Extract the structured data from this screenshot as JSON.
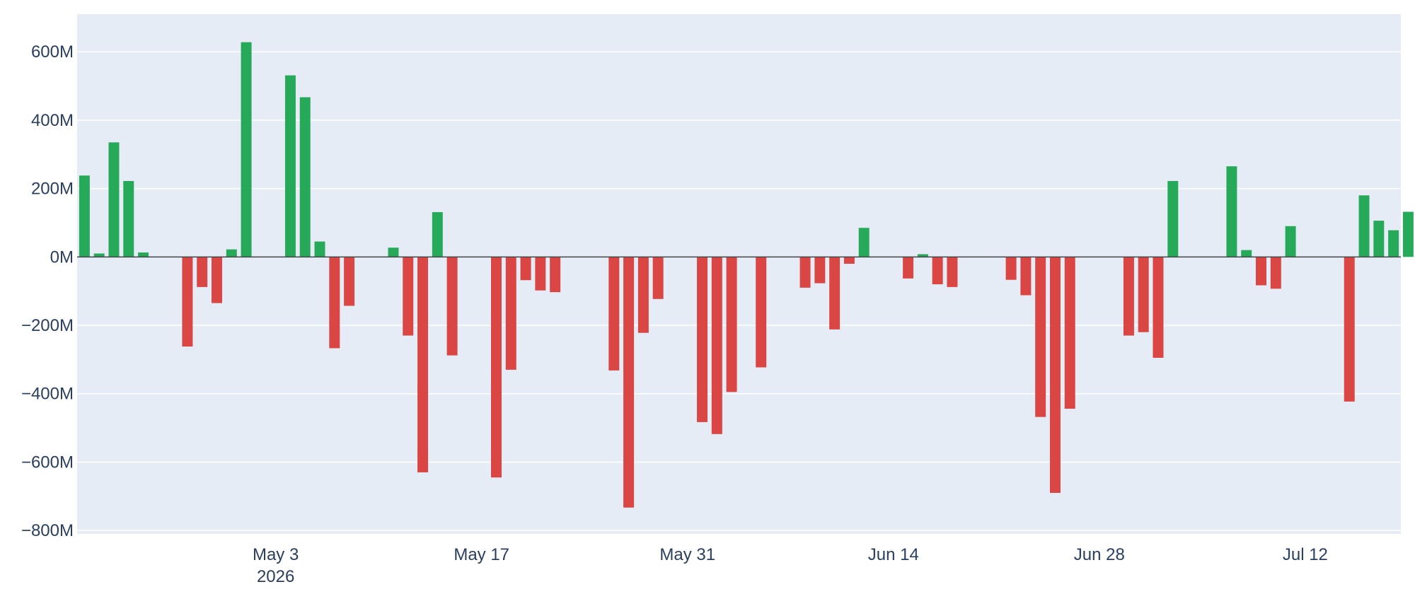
{
  "chart_data": {
    "type": "bar",
    "x_start": "2026-04-20",
    "xlim": [
      "2026-04-19T12:00",
      "2026-07-18T12:00"
    ],
    "ylim": [
      -810000000,
      710000000
    ],
    "grid": true,
    "legend": "none",
    "colors": {
      "positive": "#27a95a",
      "negative": "#d94643",
      "plot_bg": "#e5ecf6",
      "grid": "#ffffff",
      "zero_line": "#444444",
      "text": "#2a3f5f"
    },
    "yticks": [
      {
        "value": 600000000,
        "label": "600M"
      },
      {
        "value": 400000000,
        "label": "400M"
      },
      {
        "value": 200000000,
        "label": "200M"
      },
      {
        "value": 0,
        "label": "0M"
      },
      {
        "value": -200000000,
        "label": "−200M"
      },
      {
        "value": -400000000,
        "label": "−400M"
      },
      {
        "value": -600000000,
        "label": "−600M"
      },
      {
        "value": -800000000,
        "label": "−800M"
      }
    ],
    "xticks": [
      {
        "date": "2026-05-03",
        "label": "May 3",
        "sublabel": "2026"
      },
      {
        "date": "2026-05-17",
        "label": "May 17"
      },
      {
        "date": "2026-05-31",
        "label": "May 31"
      },
      {
        "date": "2026-06-14",
        "label": "Jun 14"
      },
      {
        "date": "2026-06-28",
        "label": "Jun 28"
      },
      {
        "date": "2026-07-12",
        "label": "Jul 12"
      }
    ],
    "values": [
      238,
      10,
      335,
      222,
      13,
      0,
      0,
      -262,
      -88,
      -135,
      22,
      628,
      0,
      0,
      531,
      467,
      45,
      -267,
      -143,
      0,
      0,
      27,
      -230,
      -630,
      131,
      -288,
      0,
      0,
      -645,
      -330,
      -68,
      -98,
      -103,
      0,
      0,
      0,
      -332,
      -733,
      -222,
      -123,
      0,
      0,
      -483,
      -518,
      -395,
      0,
      -323,
      0,
      0,
      -90,
      -77,
      -212,
      -20,
      85,
      0,
      0,
      -63,
      8,
      -80,
      -88,
      0,
      0,
      0,
      -67,
      -112,
      -468,
      -690,
      -444,
      0,
      0,
      0,
      -230,
      -220,
      -295,
      222,
      0,
      0,
      0,
      265,
      20,
      -83,
      -93,
      90,
      0,
      0,
      0,
      -423,
      180,
      106,
      78,
      132
    ],
    "value_unit": 1000000
  }
}
